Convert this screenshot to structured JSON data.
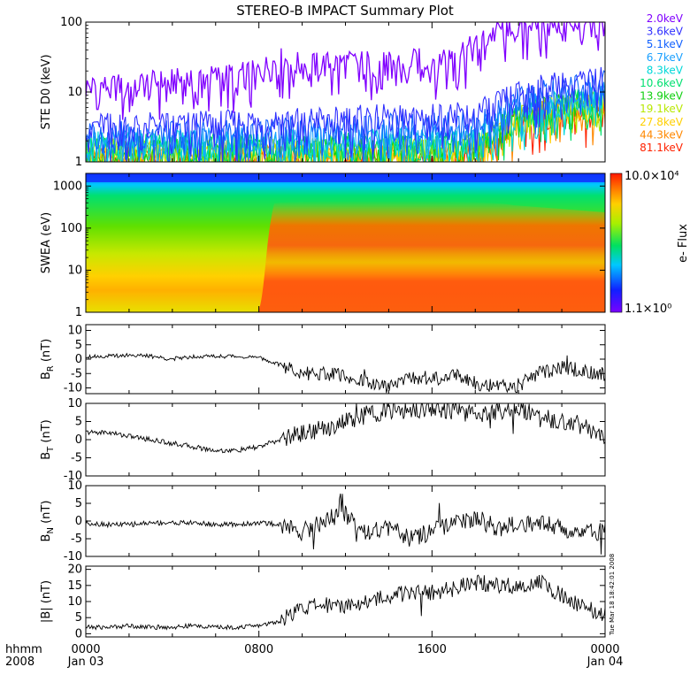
{
  "title": "STEREO-B IMPACT Summary Plot",
  "footer": {
    "hhmm": "hhmm",
    "year": "2008"
  },
  "x_axis": {
    "ticks": [
      "0000",
      "0800",
      "1600",
      "0000"
    ],
    "tick_hours": [
      0,
      8,
      16,
      24
    ],
    "date_labels": [
      "Jan 03",
      "Jan 04"
    ],
    "range_hours": [
      0,
      24
    ]
  },
  "timestamp": "Tue Mar 18 18:42:01 2008",
  "chart_data": [
    {
      "id": "ste",
      "type": "line",
      "ylabel": "STE D0 (keV)",
      "yscale": "log",
      "ylim": [
        1,
        100
      ],
      "yticks": [
        1,
        10,
        100
      ],
      "ytick_labels": [
        "1",
        "10",
        "100"
      ],
      "series": [
        {
          "name": "2.0keV",
          "color": "#8000ff",
          "x": [
            0,
            2,
            4,
            6,
            8,
            9,
            10,
            11,
            12,
            13,
            14,
            15,
            16,
            17,
            18,
            19,
            19.5,
            20,
            21,
            22,
            23,
            24
          ],
          "values": [
            12,
            13,
            15,
            17,
            20,
            30,
            25,
            26,
            27,
            28,
            26,
            29,
            30,
            38,
            45,
            75,
            100,
            100,
            100,
            100,
            100,
            100
          ]
        },
        {
          "name": "3.6keV",
          "color": "#3030ff",
          "x": [
            0,
            4,
            8,
            12,
            16,
            18,
            19,
            20,
            21,
            22,
            23,
            24
          ],
          "values": [
            3.5,
            3.6,
            4,
            4.5,
            4.8,
            5,
            7,
            10,
            12,
            14,
            15,
            16
          ]
        },
        {
          "name": "5.1keV",
          "color": "#1060ff",
          "x": [
            0,
            4,
            8,
            12,
            16,
            18,
            19,
            20,
            21,
            22,
            23,
            24
          ],
          "values": [
            2.6,
            2.7,
            3,
            3.3,
            3.5,
            3.8,
            5.5,
            8,
            10,
            12,
            13,
            14
          ]
        },
        {
          "name": "6.7keV",
          "color": "#1aa0ff",
          "x": [
            0,
            8,
            16,
            18,
            19,
            20,
            22,
            24
          ],
          "values": [
            2.2,
            2.3,
            2.5,
            2.7,
            4,
            6,
            9,
            10
          ]
        },
        {
          "name": "8.3keV",
          "color": "#00d8d8",
          "x": [
            0,
            8,
            16,
            18,
            19,
            20,
            22,
            24
          ],
          "values": [
            1.9,
            2,
            2.1,
            2.3,
            3.4,
            5.5,
            8,
            8.5
          ]
        },
        {
          "name": "10.6keV",
          "color": "#00e070",
          "x": [
            0,
            8,
            16,
            18,
            19,
            20,
            22,
            24
          ],
          "values": [
            1.7,
            1.8,
            1.9,
            2,
            3,
            5,
            7.5,
            8
          ]
        },
        {
          "name": "13.9keV",
          "color": "#10d010",
          "x": [
            0,
            8,
            16,
            18,
            19,
            20,
            22,
            24
          ],
          "values": [
            1.6,
            1.6,
            1.7,
            1.8,
            2.8,
            4.8,
            7,
            7.5
          ]
        },
        {
          "name": "19.1keV",
          "color": "#b8e800",
          "x": [
            0,
            8,
            16,
            18,
            19,
            20,
            22,
            24
          ],
          "values": [
            1.5,
            1.5,
            1.6,
            1.7,
            2.6,
            4.6,
            7,
            7
          ]
        },
        {
          "name": "27.8keV",
          "color": "#ffd000",
          "x": [
            0,
            8,
            16,
            18,
            19,
            20,
            22,
            24
          ],
          "values": [
            1.4,
            1.4,
            1.5,
            1.6,
            2.5,
            4.5,
            6.5,
            6.5
          ]
        },
        {
          "name": "44.3keV",
          "color": "#ff8800",
          "x": [
            0,
            8,
            16,
            18,
            19,
            20,
            22,
            24
          ],
          "values": [
            1.2,
            1.2,
            1.3,
            1.4,
            2.3,
            4.2,
            6,
            6
          ]
        },
        {
          "name": "81.1keV",
          "color": "#ff2200",
          "x": [
            0,
            8,
            16,
            18,
            19,
            20,
            22,
            24
          ],
          "values": [
            1.1,
            1.1,
            1.2,
            1.3,
            2.2,
            4,
            5.5,
            5.5
          ]
        }
      ]
    },
    {
      "id": "swea",
      "type": "heatmap",
      "ylabel": "SWEA (eV)",
      "yscale": "log",
      "ylim": [
        1,
        2000
      ],
      "yticks": [
        1,
        10,
        100,
        1000
      ],
      "ytick_labels": [
        "1",
        "10",
        "100",
        "1000"
      ],
      "colorbar": {
        "label": "e- Flux",
        "max_label": "10.0×10⁴",
        "min_label": "1.1×10⁰",
        "min": 1.1,
        "max": 100000
      }
    },
    {
      "id": "br",
      "type": "line",
      "ylabel": "B_R (nT)",
      "ylim": [
        -12,
        12
      ],
      "yticks": [
        -10,
        -5,
        0,
        5,
        10
      ],
      "ytick_labels": [
        "-10",
        "-5",
        "0",
        "5",
        "10"
      ],
      "x": [
        0,
        1,
        2,
        3,
        4,
        5,
        6,
        7,
        8,
        9,
        10,
        11,
        12,
        13,
        14,
        15,
        16,
        17,
        18,
        19,
        20,
        21,
        22,
        23,
        24
      ],
      "values": [
        1,
        1,
        1.5,
        1,
        0,
        1,
        1,
        1,
        0.5,
        -2,
        -5,
        -5,
        -6,
        -8,
        -10,
        -6,
        -7,
        -5,
        -8,
        -10,
        -9,
        -5,
        -3,
        -4,
        -5
      ]
    },
    {
      "id": "bt",
      "type": "line",
      "ylabel": "B_T (nT)",
      "ylim": [
        -10,
        10
      ],
      "yticks": [
        -10,
        -5,
        0,
        5,
        10
      ],
      "ytick_labels": [
        "-10",
        "-5",
        "0",
        "5",
        "10"
      ],
      "x": [
        0,
        1,
        2,
        3,
        4,
        5,
        6,
        7,
        8,
        9,
        10,
        11,
        12,
        13,
        14,
        15,
        16,
        17,
        18,
        19,
        20,
        21,
        22,
        23,
        24
      ],
      "values": [
        2,
        2,
        1,
        0,
        -1,
        -2,
        -3,
        -3,
        -2,
        0,
        2,
        3,
        5,
        7,
        8,
        8,
        9,
        8,
        7,
        8,
        9,
        6,
        5,
        4,
        0
      ]
    },
    {
      "id": "bn",
      "type": "line",
      "ylabel": "B_N (nT)",
      "ylim": [
        -10,
        10
      ],
      "yticks": [
        -10,
        -5,
        0,
        5,
        10
      ],
      "ytick_labels": [
        "-10",
        "-5",
        "0",
        "5",
        "10"
      ],
      "x": [
        0,
        1,
        2,
        3,
        4,
        5,
        6,
        7,
        8,
        9,
        10,
        11,
        12,
        13,
        14,
        15,
        16,
        17,
        18,
        19,
        20,
        21,
        22,
        23,
        24
      ],
      "values": [
        -0.5,
        -1,
        -1,
        -0.5,
        -0.5,
        -0.5,
        -1,
        -1,
        -0.5,
        -1,
        -3,
        0,
        2,
        -3,
        -2,
        -5,
        -3,
        -1,
        1,
        -2,
        -1,
        0,
        -2,
        -3,
        -3
      ]
    },
    {
      "id": "bmag",
      "type": "line",
      "ylabel": "|B| (nT)",
      "ylim": [
        -1,
        21
      ],
      "yticks": [
        0,
        5,
        10,
        15,
        20
      ],
      "ytick_labels": [
        "0",
        "5",
        "10",
        "15",
        "20"
      ],
      "x": [
        0,
        1,
        2,
        3,
        4,
        5,
        6,
        7,
        8,
        9,
        10,
        11,
        12,
        13,
        14,
        15,
        16,
        17,
        18,
        19,
        20,
        21,
        22,
        23,
        24
      ],
      "values": [
        2,
        2,
        2.5,
        2,
        2,
        2.5,
        2,
        2,
        2.5,
        4,
        8,
        9,
        9,
        10,
        12,
        13,
        13,
        14,
        16,
        15,
        15,
        16,
        12,
        8,
        6
      ]
    }
  ]
}
